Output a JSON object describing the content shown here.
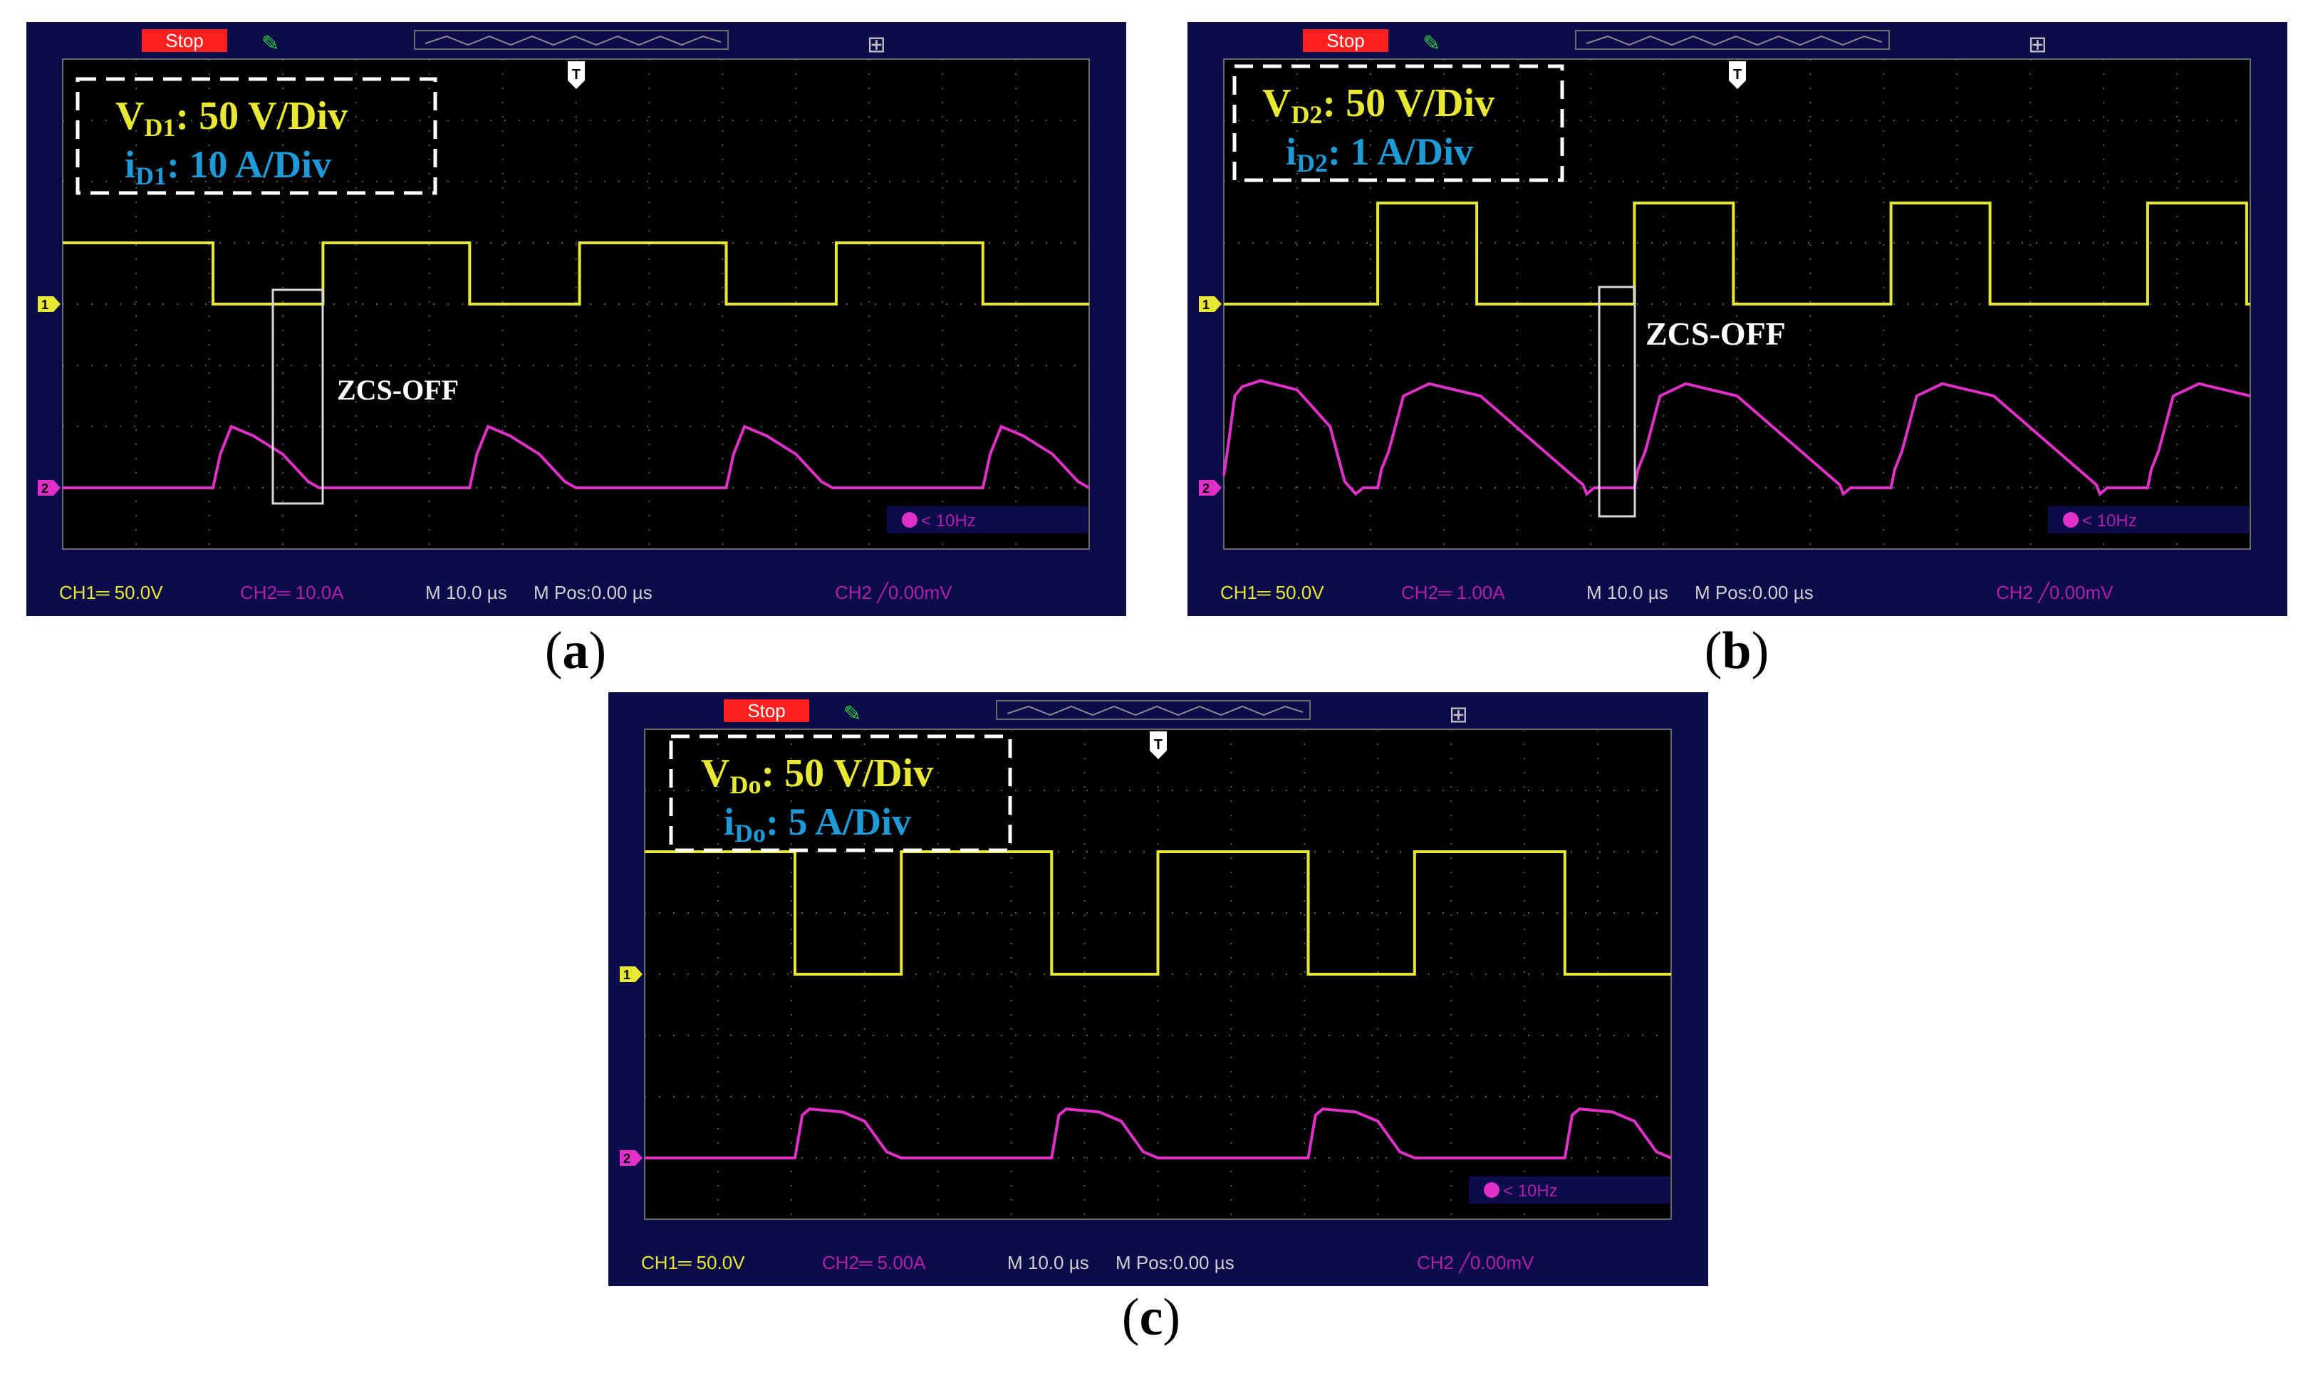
{
  "scope_ui": {
    "stop_label": "Stop",
    "filter_label": "< 10Hz",
    "ch1_marker": "1",
    "ch2_marker": "2",
    "trigger_marker": "T",
    "colors": {
      "frame": "#0c0c4a",
      "screen": "#000000",
      "ch1": "#e8e832",
      "ch2": "#e030c8",
      "stop": "#ff2020",
      "readout_ch2": "#b020a8",
      "box_ch2": "#1e9bd7"
    }
  },
  "panels": [
    {
      "label_open": "(",
      "label": "a",
      "label_close": ")",
      "volt_sym": "V",
      "volt_sub": "D1",
      "volt_text": ": 50 V/Div",
      "curr_sym": "i",
      "curr_sub": "D1",
      "curr_text": ": 10 A/Div",
      "annotation": "ZCS-OFF",
      "readout_ch1": "CH1═ 50.0V",
      "readout_ch2": "CH2═ 10.0A",
      "readout_time": "M 10.0 µs",
      "readout_pos": "M Pos:0.00 µs",
      "readout_trig": "CH2 ╱0.00mV"
    },
    {
      "label_open": "(",
      "label": "b",
      "label_close": ")",
      "volt_sym": "V",
      "volt_sub": "D2",
      "volt_text": ": 50 V/Div",
      "curr_sym": "i",
      "curr_sub": "D2",
      "curr_text": ": 1 A/Div",
      "annotation": "ZCS-OFF",
      "readout_ch1": "CH1═ 50.0V",
      "readout_ch2": "CH2═ 1.00A",
      "readout_time": "M 10.0 µs",
      "readout_pos": "M Pos:0.00 µs",
      "readout_trig": "CH2 ╱0.00mV"
    },
    {
      "label_open": "(",
      "label": "c",
      "label_close": ")",
      "volt_sym": "V",
      "volt_sub": "Do",
      "volt_text": ": 50 V/Div",
      "curr_sym": "i",
      "curr_sub": "Do",
      "curr_text": ": 5 A/Div",
      "annotation": "",
      "readout_ch1": "CH1═ 50.0V",
      "readout_ch2": "CH2═ 5.00A",
      "readout_time": "M 10.0 µs",
      "readout_pos": "M Pos:0.00 µs",
      "readout_trig": "CH2 ╱0.00mV"
    }
  ],
  "chart_data": [
    {
      "type": "line",
      "title": "",
      "xlabel": "",
      "ylabel": "",
      "xlim": [
        0,
        140
      ],
      "ylim": [
        -4,
        4
      ],
      "x_unit": "µs",
      "x_per_div": 10,
      "grid": true,
      "series": [
        {
          "name": "V_D1",
          "channel": "CH1",
          "ground_div": 0,
          "x": [
            0,
            20.5,
            20.5,
            35.5,
            35.5,
            55.5,
            55.5,
            70.5,
            70.5,
            90.5,
            90.5,
            105.5,
            105.5,
            125.5,
            125.5,
            140
          ],
          "y": [
            1,
            1,
            0,
            0,
            1,
            1,
            0,
            0,
            1,
            1,
            0,
            0,
            1,
            1,
            0,
            0
          ]
        },
        {
          "name": "i_D1",
          "channel": "CH2",
          "ground_div": -3,
          "x": [
            0,
            20.5,
            21.5,
            23,
            26,
            30,
            33.5,
            35,
            55.5,
            56.5,
            58,
            61,
            65,
            68.5,
            70,
            90.5,
            91.5,
            93,
            96,
            100,
            103.5,
            105,
            125.5,
            126.5,
            128,
            131,
            135,
            138.5,
            140
          ],
          "y": [
            0,
            0,
            0.55,
            1.0,
            0.85,
            0.55,
            0.1,
            0,
            0,
            0.55,
            1.0,
            0.85,
            0.55,
            0.1,
            0,
            0,
            0.55,
            1.0,
            0.85,
            0.55,
            0.1,
            0,
            0,
            0.55,
            1.0,
            0.85,
            0.55,
            0.1,
            0
          ]
        }
      ]
    },
    {
      "type": "line",
      "title": "",
      "xlabel": "",
      "ylabel": "",
      "xlim": [
        0,
        140
      ],
      "ylim": [
        -4,
        4
      ],
      "x_unit": "µs",
      "x_per_div": 10,
      "grid": true,
      "series": [
        {
          "name": "V_D2",
          "channel": "CH1",
          "ground_div": 0,
          "x": [
            0,
            21,
            21,
            34.5,
            34.5,
            56,
            56,
            69.5,
            69.5,
            91,
            91,
            104.5,
            104.5,
            126,
            126,
            139.5,
            139.5,
            140
          ],
          "y": [
            0,
            0,
            1.65,
            1.65,
            0,
            0,
            1.65,
            1.65,
            0,
            0,
            1.65,
            1.65,
            0,
            0,
            1.65,
            1.65,
            0,
            0
          ]
        },
        {
          "name": "i_D2",
          "channel": "CH2",
          "ground_div": -3,
          "x": [
            0,
            0.5,
            1.5,
            2.5,
            5,
            10,
            14.5,
            16.5,
            18,
            19,
            21,
            21.5,
            22.5,
            24.5,
            28,
            35,
            49,
            49.5,
            50.5,
            52,
            56,
            56.5,
            57.5,
            59.5,
            63,
            70,
            84,
            84.5,
            85.5,
            87,
            91,
            91.5,
            92.5,
            94.5,
            98,
            105,
            119,
            119.5,
            120.5,
            122,
            126,
            126.5,
            127.5,
            129.5,
            133,
            140
          ],
          "y": [
            0.2,
            0.6,
            1.5,
            1.65,
            1.75,
            1.6,
            1.0,
            0.1,
            -0.1,
            0,
            0,
            0.3,
            0.6,
            1.5,
            1.7,
            1.5,
            0.05,
            -0.1,
            0,
            0,
            0,
            0.3,
            0.6,
            1.5,
            1.7,
            1.5,
            0.05,
            -0.1,
            0,
            0,
            0,
            0.3,
            0.6,
            1.5,
            1.7,
            1.5,
            0.05,
            -0.1,
            0,
            0,
            0,
            0.3,
            0.6,
            1.5,
            1.7,
            1.5
          ]
        }
      ]
    },
    {
      "type": "line",
      "title": "",
      "xlabel": "",
      "ylabel": "",
      "xlim": [
        0,
        140
      ],
      "ylim": [
        -4,
        4
      ],
      "x_unit": "µs",
      "x_per_div": 10,
      "grid": true,
      "series": [
        {
          "name": "V_Do",
          "channel": "CH1",
          "ground_div": 0,
          "x": [
            0,
            20.5,
            20.5,
            35,
            35,
            55.5,
            55.5,
            70,
            70,
            90.5,
            90.5,
            105,
            105,
            125.5,
            125.5,
            140
          ],
          "y": [
            2,
            2,
            0,
            0,
            2,
            2,
            0,
            0,
            2,
            2,
            0,
            0,
            2,
            2,
            0,
            0
          ]
        },
        {
          "name": "i_Do",
          "channel": "CH2",
          "ground_div": -3,
          "x": [
            0,
            20.5,
            21.5,
            22.5,
            27,
            30,
            33,
            35,
            55.5,
            56.5,
            57.5,
            62,
            65,
            68,
            70,
            90.5,
            91.5,
            92.5,
            97,
            100,
            103,
            105,
            125.5,
            126.5,
            127.5,
            132,
            135,
            138,
            140
          ],
          "y": [
            0,
            0,
            0.7,
            0.8,
            0.75,
            0.6,
            0.1,
            0,
            0,
            0.7,
            0.8,
            0.75,
            0.6,
            0.1,
            0,
            0,
            0.7,
            0.8,
            0.75,
            0.6,
            0.1,
            0,
            0,
            0.7,
            0.8,
            0.75,
            0.6,
            0.1,
            0
          ]
        }
      ]
    }
  ]
}
